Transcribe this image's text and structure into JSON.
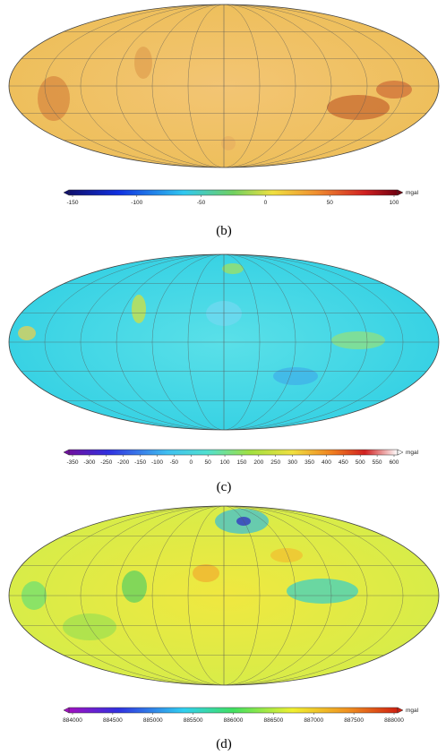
{
  "panels": [
    {
      "label": "(b)",
      "unit": "mgal",
      "ticks": [
        -150,
        -100,
        -50,
        0,
        50,
        100
      ]
    },
    {
      "label": "(c)",
      "unit": "mgal",
      "ticks": [
        -350,
        -300,
        -250,
        -200,
        -150,
        -100,
        -50,
        0,
        50,
        100,
        150,
        200,
        250,
        300,
        350,
        400,
        450,
        500,
        550,
        600
      ]
    },
    {
      "label": "(d)",
      "unit": "mgal",
      "ticks": [
        884000,
        884500,
        885000,
        885500,
        886000,
        886500,
        887000,
        887500,
        888000
      ]
    }
  ]
}
